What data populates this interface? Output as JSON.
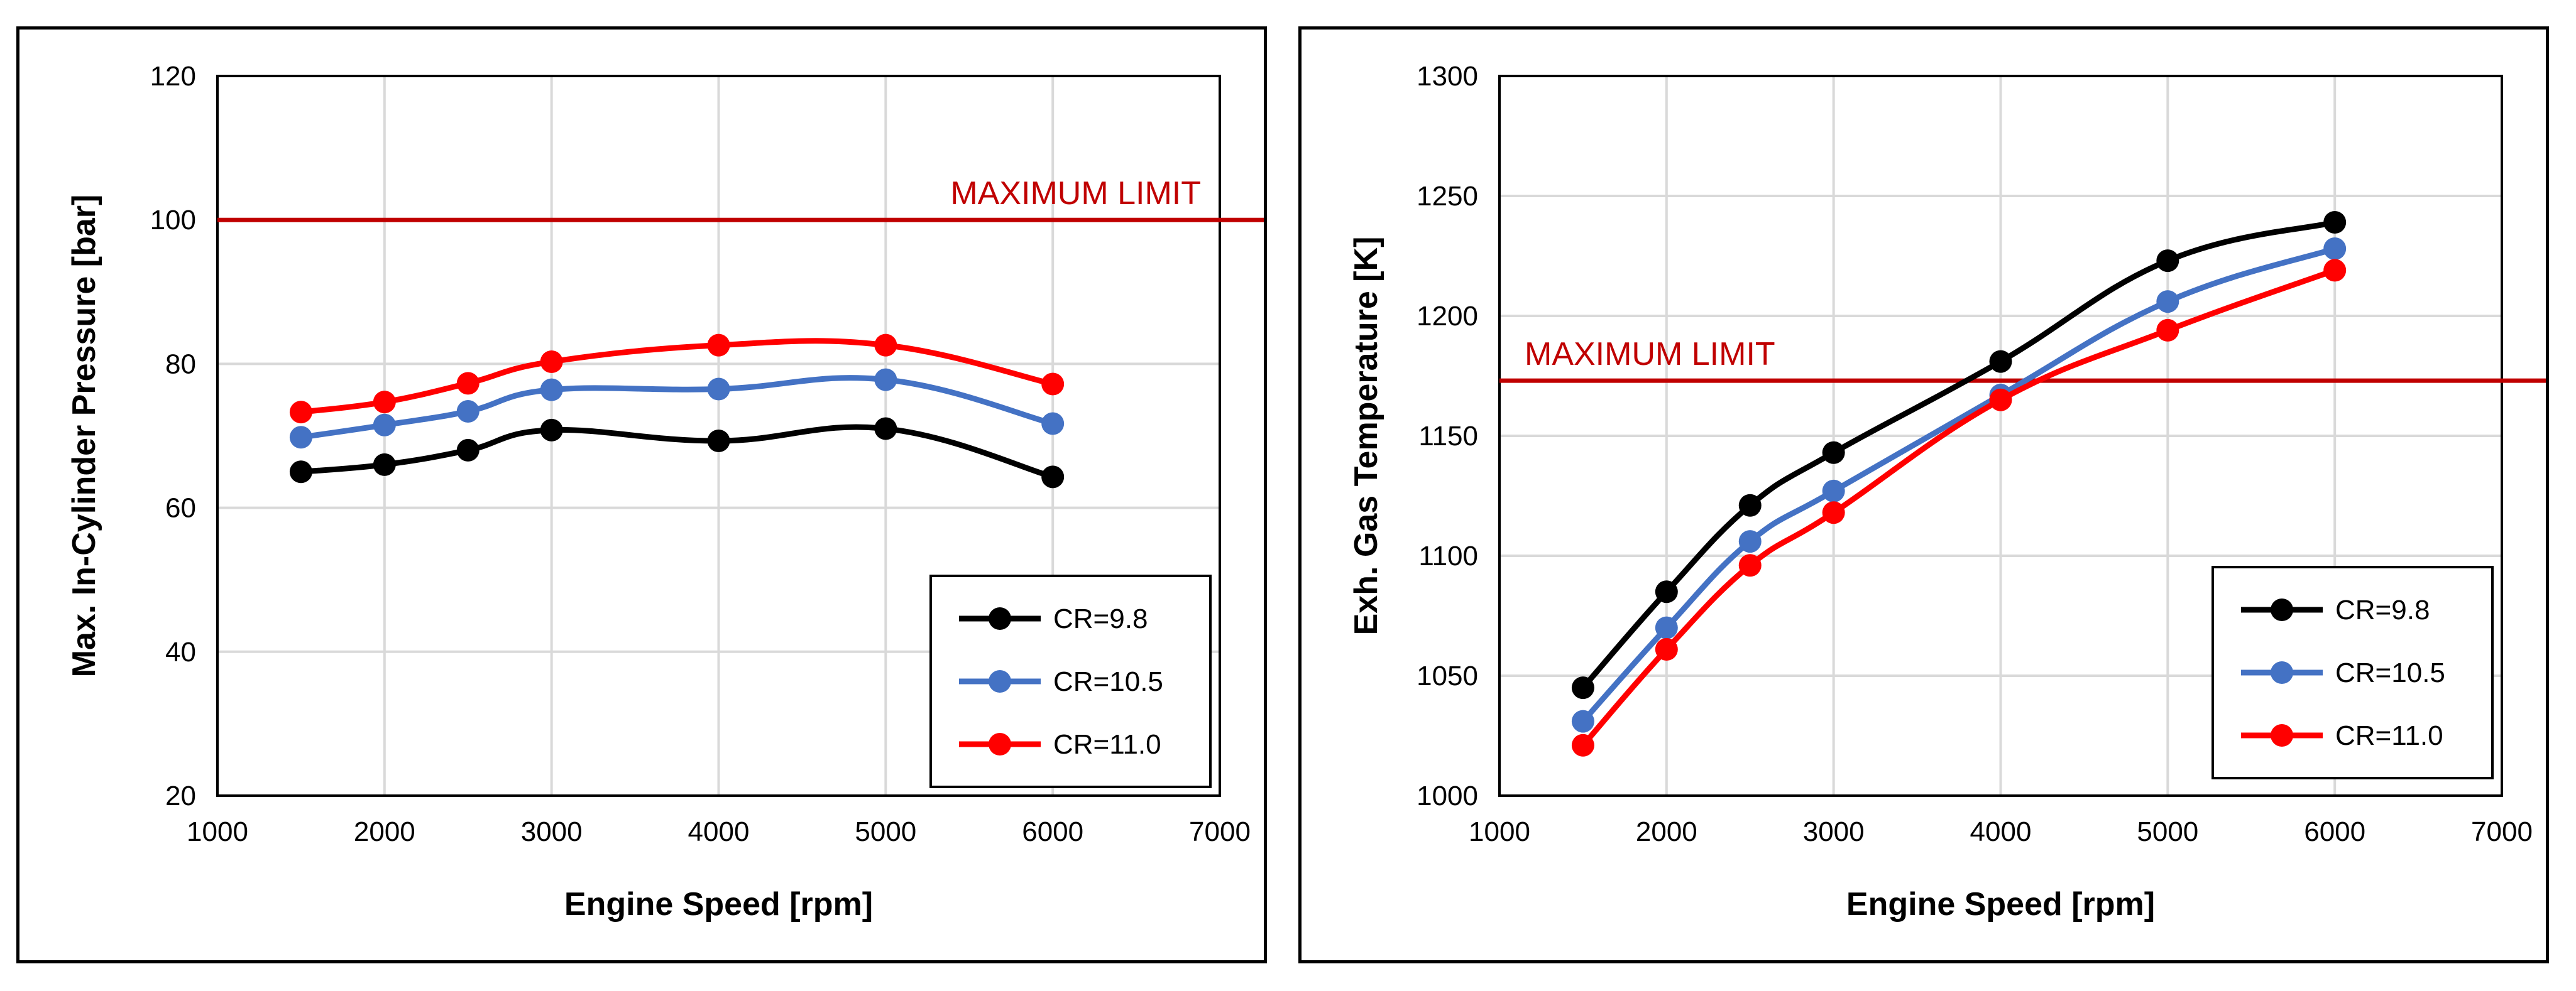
{
  "chart_data": [
    {
      "type": "line",
      "title": "",
      "xlabel": "Engine Speed [rpm]",
      "ylabel": "Max. In-Cylinder Pressure [bar]",
      "xlim": [
        1000,
        7000
      ],
      "ylim": [
        20,
        120
      ],
      "xticks": [
        1000,
        2000,
        3000,
        4000,
        5000,
        6000,
        7000
      ],
      "yticks": [
        20,
        40,
        60,
        80,
        100,
        120
      ],
      "grid": true,
      "legend_position": "bottom-right",
      "x": [
        1500,
        2000,
        2500,
        3000,
        4000,
        5000,
        6000
      ],
      "series": [
        {
          "name": "CR=9.8",
          "color": "#000000",
          "values": [
            65,
            66,
            68,
            70.8,
            69.3,
            71,
            64.3
          ]
        },
        {
          "name": "CR=10.5",
          "color": "#4472c4",
          "values": [
            69.8,
            71.5,
            73.4,
            76.4,
            76.5,
            77.8,
            71.7
          ]
        },
        {
          "name": "CR=11.0",
          "color": "#ff0000",
          "values": [
            73.3,
            74.7,
            77.3,
            80.3,
            82.6,
            82.6,
            77.2
          ]
        }
      ],
      "limit": {
        "value": 100,
        "label": "MAXIMUM LIMIT",
        "color": "#c00000"
      }
    },
    {
      "type": "line",
      "title": "",
      "xlabel": "Engine Speed [rpm]",
      "ylabel": "Exh. Gas Temperature [K]",
      "xlim": [
        1000,
        7000
      ],
      "ylim": [
        1000,
        1300
      ],
      "xticks": [
        1000,
        2000,
        3000,
        4000,
        5000,
        6000,
        7000
      ],
      "yticks": [
        1000,
        1050,
        1100,
        1150,
        1200,
        1250,
        1300
      ],
      "grid": true,
      "legend_position": "bottom-right",
      "x": [
        1500,
        2000,
        2500,
        3000,
        4000,
        5000,
        6000
      ],
      "series": [
        {
          "name": "CR=9.8",
          "color": "#000000",
          "values": [
            1045,
            1085,
            1121,
            1143,
            1181,
            1223,
            1239
          ]
        },
        {
          "name": "CR=10.5",
          "color": "#4472c4",
          "values": [
            1031,
            1070,
            1106,
            1127,
            1167,
            1206,
            1228
          ]
        },
        {
          "name": "CR=11.0",
          "color": "#ff0000",
          "values": [
            1021,
            1061,
            1096,
            1118,
            1165,
            1194,
            1219
          ]
        }
      ],
      "limit": {
        "value": 1173,
        "label": "MAXIMUM LIMIT",
        "color": "#c00000"
      }
    }
  ]
}
